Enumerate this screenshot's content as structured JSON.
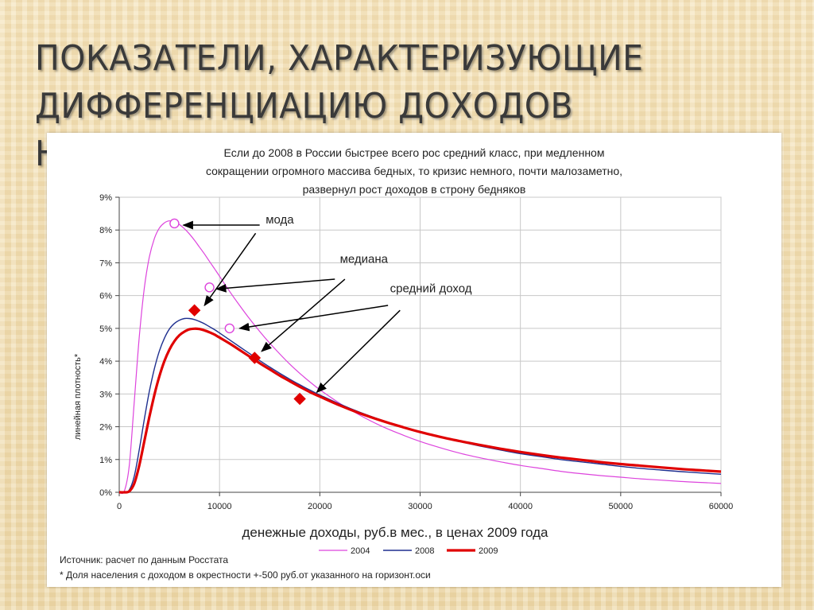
{
  "slide": {
    "title_line1": "ПОКАЗАТЕЛИ, ХАРАКТЕРИЗУЮЩИЕ",
    "title_line2": "ДИФФЕРЕНЦИАЦИЮ ДОХОДОВ НАСЕЛЕНИЯ"
  },
  "chart_data": {
    "type": "line",
    "subtitle_lines": [
      "Если до 2008 в России быстрее всего рос средний класс, при медленном",
      "сокращении огромного массива бедных, то кризис немного, почти малозаметно,",
      "развернул рост доходов в строну бедняков"
    ],
    "xlabel": "денежные доходы, руб.в мес., в ценах 2009 года",
    "ylabel": "линейная плотность*",
    "xlim": [
      0,
      60000
    ],
    "ylim": [
      0,
      9
    ],
    "x_ticks": [
      "0",
      "10000",
      "20000",
      "30000",
      "40000",
      "50000",
      "60000"
    ],
    "y_ticks": [
      "0%",
      "1%",
      "2%",
      "3%",
      "4%",
      "5%",
      "6%",
      "7%",
      "8%",
      "9%"
    ],
    "grid": true,
    "legend_position": "bottom",
    "series": [
      {
        "name": "2004",
        "color": "#dd44dd",
        "x": [
          0,
          500,
          1000,
          1500,
          2000,
          2500,
          3000,
          3500,
          4000,
          4500,
          5000,
          5500,
          6000,
          6500,
          7000,
          7500,
          8000,
          8500,
          9000,
          9500,
          10000,
          11000,
          12000,
          13000,
          14000,
          15000,
          16000,
          17000,
          18000,
          19000,
          20000,
          22000,
          24000,
          26000,
          28000,
          30000,
          32000,
          34000,
          36000,
          38000,
          40000,
          42000,
          44000,
          46000,
          48000,
          50000,
          52000,
          54000,
          56000,
          58000,
          60000
        ],
        "y": [
          0.0,
          0.03,
          0.81,
          2.76,
          4.74,
          6.22,
          7.17,
          7.74,
          8.06,
          8.22,
          8.28,
          8.25,
          8.17,
          8.04,
          7.88,
          7.69,
          7.48,
          7.27,
          7.04,
          6.82,
          6.59,
          6.13,
          5.7,
          5.29,
          4.91,
          4.55,
          4.22,
          3.91,
          3.63,
          3.37,
          3.13,
          2.71,
          2.35,
          2.04,
          1.78,
          1.55,
          1.36,
          1.19,
          1.05,
          0.93,
          0.82,
          0.73,
          0.64,
          0.57,
          0.51,
          0.46,
          0.41,
          0.37,
          0.33,
          0.3,
          0.27
        ]
      },
      {
        "name": "2008",
        "color": "#1f2f8f",
        "x": [
          0,
          500,
          1000,
          1500,
          2000,
          2500,
          3000,
          3500,
          4000,
          4500,
          5000,
          5500,
          6000,
          6500,
          7000,
          7500,
          8000,
          8500,
          9000,
          9500,
          10000,
          11000,
          12000,
          13000,
          14000,
          15000,
          16000,
          17000,
          18000,
          19000,
          20000,
          22000,
          24000,
          26000,
          28000,
          30000,
          32000,
          34000,
          36000,
          38000,
          40000,
          42000,
          44000,
          46000,
          48000,
          50000,
          52000,
          54000,
          56000,
          58000,
          60000
        ],
        "y": [
          0.0,
          0.0,
          0.07,
          0.49,
          1.3,
          2.22,
          3.07,
          3.77,
          4.31,
          4.7,
          4.98,
          5.15,
          5.25,
          5.3,
          5.3,
          5.27,
          5.21,
          5.14,
          5.05,
          4.96,
          4.86,
          4.65,
          4.44,
          4.23,
          4.02,
          3.82,
          3.63,
          3.45,
          3.28,
          3.12,
          2.97,
          2.69,
          2.44,
          2.22,
          2.02,
          1.84,
          1.68,
          1.54,
          1.41,
          1.29,
          1.18,
          1.09,
          1.0,
          0.93,
          0.86,
          0.79,
          0.73,
          0.68,
          0.63,
          0.59,
          0.55
        ]
      },
      {
        "name": "2009",
        "color": "#e00000",
        "x": [
          0,
          500,
          1000,
          1500,
          2000,
          2500,
          3000,
          3500,
          4000,
          4500,
          5000,
          5500,
          6000,
          6500,
          7000,
          7500,
          8000,
          8500,
          9000,
          9500,
          10000,
          11000,
          12000,
          13000,
          14000,
          15000,
          16000,
          17000,
          18000,
          19000,
          20000,
          22000,
          24000,
          26000,
          28000,
          30000,
          32000,
          34000,
          36000,
          38000,
          40000,
          42000,
          44000,
          46000,
          48000,
          50000,
          52000,
          54000,
          56000,
          58000,
          60000
        ],
        "y": [
          0.0,
          0.0,
          0.03,
          0.27,
          0.82,
          1.55,
          2.29,
          2.97,
          3.54,
          4.0,
          4.35,
          4.61,
          4.79,
          4.9,
          4.97,
          4.99,
          4.98,
          4.94,
          4.88,
          4.81,
          4.72,
          4.54,
          4.34,
          4.14,
          3.94,
          3.75,
          3.56,
          3.39,
          3.22,
          3.06,
          2.92,
          2.65,
          2.41,
          2.2,
          2.01,
          1.84,
          1.69,
          1.56,
          1.44,
          1.33,
          1.23,
          1.14,
          1.06,
          0.99,
          0.92,
          0.86,
          0.81,
          0.76,
          0.71,
          0.67,
          0.63
        ]
      }
    ],
    "markers": [
      {
        "series": "2004",
        "kind": "open-circle",
        "x": 5500,
        "y": 8.2
      },
      {
        "series": "2004",
        "kind": "open-circle",
        "x": 9000,
        "y": 6.25
      },
      {
        "series": "2004",
        "kind": "open-circle",
        "x": 11000,
        "y": 5.0
      },
      {
        "series": "2009",
        "kind": "diamond",
        "x": 7500,
        "y": 5.55
      },
      {
        "series": "2009",
        "kind": "diamond",
        "x": 13500,
        "y": 4.1
      },
      {
        "series": "2009",
        "kind": "diamond",
        "x": 18000,
        "y": 2.85
      }
    ],
    "annotations": [
      {
        "text": "мода",
        "x": 14600,
        "y": 8.2,
        "arrows": [
          {
            "from": [
              14000,
              8.15
            ],
            "to": [
              6400,
              8.15
            ]
          },
          {
            "from": [
              13600,
              7.9
            ],
            "to": [
              8500,
              5.7
            ]
          }
        ]
      },
      {
        "text": "медиана",
        "x": 22000,
        "y": 7.0,
        "arrows": [
          {
            "from": [
              21500,
              6.5
            ],
            "to": [
              9700,
              6.2
            ]
          },
          {
            "from": [
              22500,
              6.5
            ],
            "to": [
              14200,
              4.3
            ]
          }
        ]
      },
      {
        "text": "средний доход",
        "x": 27000,
        "y": 6.1,
        "arrows": [
          {
            "from": [
              26800,
              5.7
            ],
            "to": [
              12000,
              5.0
            ]
          },
          {
            "from": [
              28000,
              5.55
            ],
            "to": [
              19700,
              3.05
            ]
          }
        ]
      }
    ],
    "footnotes": [
      "Источник: расчет по данным Росстата",
      "* Доля населения с доходом в окрестности +-500 руб.от указанного на горизонт.оси"
    ]
  }
}
